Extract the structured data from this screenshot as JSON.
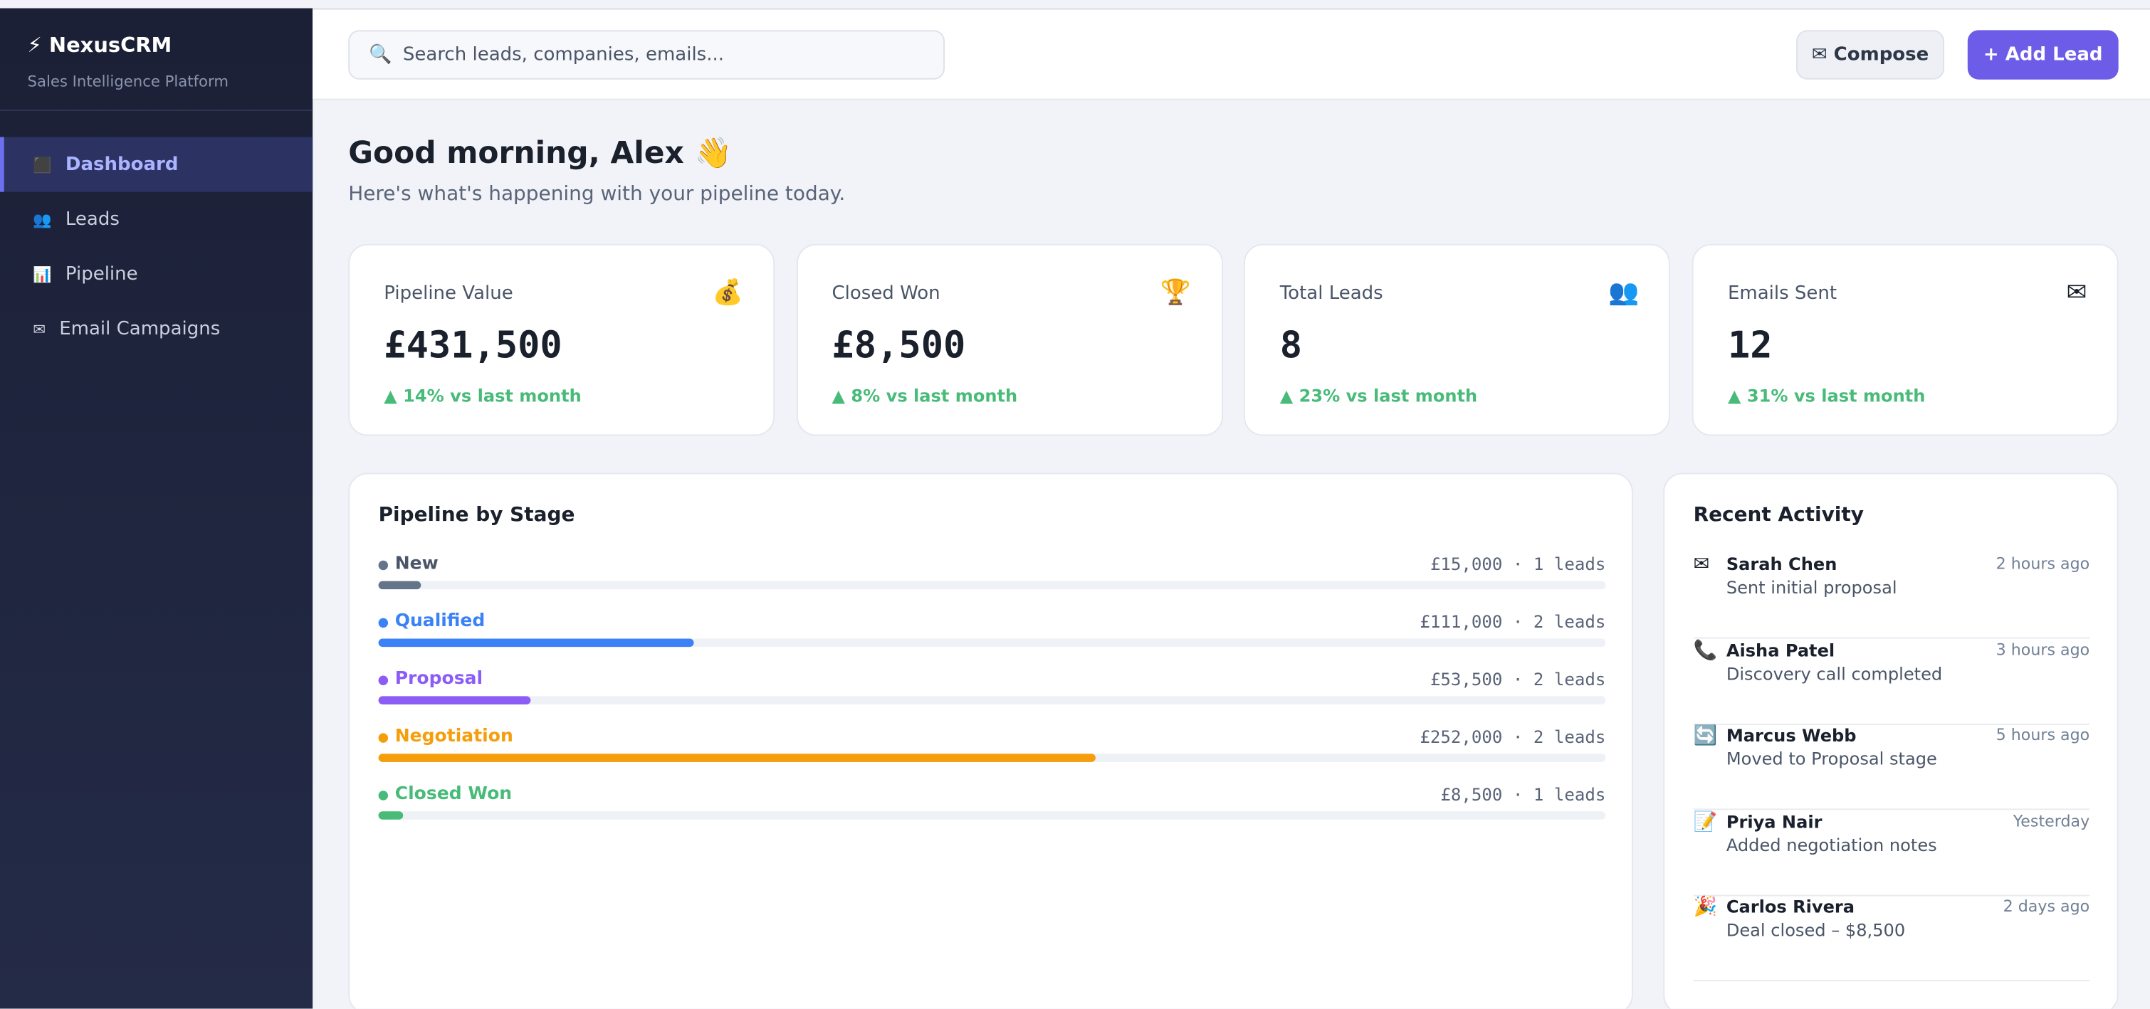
{
  "sidebar": {
    "logo_icon": "⚡",
    "brand": "NexusCRM",
    "tagline": "Sales Intelligence Platform",
    "nav": [
      {
        "icon": "⬛",
        "label": "Dashboard",
        "active": true
      },
      {
        "icon": "👥",
        "label": "Leads",
        "active": false
      },
      {
        "icon": "📊",
        "label": "Pipeline",
        "active": false
      },
      {
        "icon": "✉",
        "label": "Email Campaigns",
        "active": false
      }
    ]
  },
  "topbar": {
    "search_icon": "🔍",
    "search_placeholder": "Search leads, companies, emails...",
    "compose": "✉ Compose",
    "add_lead": "+ Add Lead"
  },
  "greeting": {
    "title": "Good morning, Alex 👋",
    "subtitle": "Here's what's happening with your pipeline today."
  },
  "stats": [
    {
      "label": "Pipeline Value",
      "icon": "💰",
      "value": {
        "value": 431500,
        "label": "£431,500"
      },
      "change": "▲ 14% vs last month"
    },
    {
      "label": "Closed Won",
      "icon": "🏆",
      "value": {
        "value": 8500,
        "label": "£8,500"
      },
      "change": "▲ 8% vs last month"
    },
    {
      "label": "Total Leads",
      "icon": "👥",
      "value": 8,
      "change": "▲ 23% vs last month"
    },
    {
      "label": "Emails Sent",
      "icon": "✉",
      "value": 12,
      "change": "▲ 31% vs last month"
    }
  ],
  "pipeline": {
    "title": "Pipeline by Stage",
    "stages": [
      {
        "name": "New",
        "color": "#64748b",
        "value": 15000,
        "summary": "£15,000 · 1 leads"
      },
      {
        "name": "Qualified",
        "color": "#3b82f6",
        "value": 111000,
        "summary": "£111,000 · 2 leads"
      },
      {
        "name": "Proposal",
        "color": "#8b5cf6",
        "value": 53500,
        "summary": "£53,500 · 2 leads"
      },
      {
        "name": "Negotiation",
        "color": "#f59e0b",
        "value": 252000,
        "summary": "£252,000 · 2 leads"
      },
      {
        "name": "Closed Won",
        "color": "#48bb78",
        "value": 8500,
        "summary": "£8,500 · 1 leads"
      }
    ]
  },
  "activity": {
    "title": "Recent Activity",
    "items": [
      {
        "icon": "✉",
        "name": "Sarah Chen",
        "text": "Sent initial proposal",
        "time": "2 hours ago"
      },
      {
        "icon": "📞",
        "name": "Aisha Patel",
        "text": "Discovery call completed",
        "time": "3 hours ago"
      },
      {
        "icon": "🔄",
        "name": "Marcus Webb",
        "text": "Moved to Proposal stage",
        "time": "5 hours ago"
      },
      {
        "icon": "📝",
        "name": "Priya Nair",
        "text": "Added negotiation notes",
        "time": "Yesterday"
      },
      {
        "icon": "🎉",
        "name": "Carlos Rivera",
        "text": "Deal closed – $8,500",
        "time": "2 days ago"
      }
    ]
  }
}
